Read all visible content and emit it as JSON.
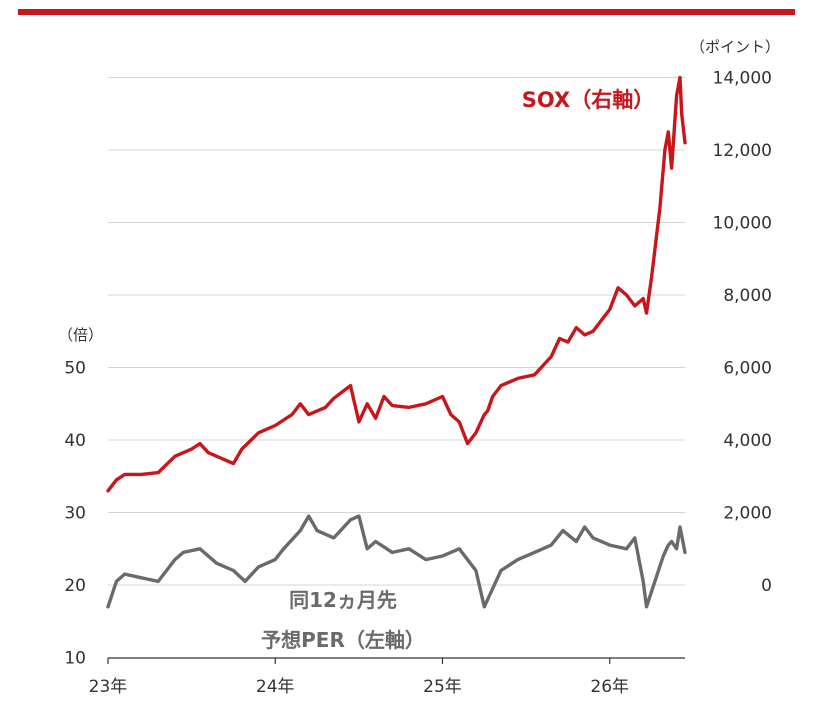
{
  "chart_data": {
    "type": "line",
    "left_axis": {
      "unit": "（倍）",
      "ylim": [
        10,
        50
      ],
      "ticks": [
        "10",
        "20",
        "30",
        "40",
        "50"
      ]
    },
    "right_axis": {
      "unit": "（ポイント）",
      "ylim": [
        0,
        14000
      ],
      "ticks": [
        "0",
        "2,000",
        "4,000",
        "6,000",
        "8,000",
        "10,000",
        "12,000",
        "14,000"
      ]
    },
    "x_axis": {
      "ticks": [
        "23年",
        "24年",
        "25年",
        "26年"
      ],
      "xlim": [
        2023.0,
        2026.45
      ]
    },
    "grid": true,
    "series": [
      {
        "name": "SOX（右軸）",
        "axis": "right",
        "color": "#c8161d",
        "x": [
          2023.0,
          2023.05,
          2023.1,
          2023.2,
          2023.3,
          2023.4,
          2023.5,
          2023.55,
          2023.6,
          2023.7,
          2023.75,
          2023.8,
          2023.9,
          2024.0,
          2024.1,
          2024.15,
          2024.2,
          2024.3,
          2024.35,
          2024.45,
          2024.5,
          2024.55,
          2024.6,
          2024.65,
          2024.7,
          2024.8,
          2024.9,
          2025.0,
          2025.05,
          2025.1,
          2025.15,
          2025.2,
          2025.25,
          2025.27,
          2025.3,
          2025.35,
          2025.45,
          2025.55,
          2025.65,
          2025.7,
          2025.75,
          2025.8,
          2025.85,
          2025.9,
          2026.0,
          2026.05,
          2026.1,
          2026.15,
          2026.2,
          2026.22,
          2026.25,
          2026.3,
          2026.33,
          2026.35,
          2026.37,
          2026.4,
          2026.42,
          2026.43,
          2026.45
        ],
        "values": [
          2600,
          2900,
          3050,
          3050,
          3100,
          3550,
          3750,
          3900,
          3650,
          3450,
          3350,
          3750,
          4200,
          4400,
          4700,
          5000,
          4700,
          4900,
          5150,
          5500,
          4500,
          5000,
          4600,
          5200,
          4950,
          4900,
          5000,
          5200,
          4700,
          4500,
          3900,
          4200,
          4700,
          4800,
          5200,
          5500,
          5700,
          5800,
          6300,
          6800,
          6700,
          7100,
          6900,
          7000,
          7600,
          8200,
          8000,
          7700,
          7900,
          7500,
          8500,
          10400,
          12000,
          12500,
          11500,
          13500,
          14000,
          13000,
          12200
        ]
      },
      {
        "name": "同12ヵ月先予想PER（左軸）",
        "axis": "left",
        "color": "#6a6a6a",
        "x": [
          2023.0,
          2023.05,
          2023.1,
          2023.2,
          2023.3,
          2023.4,
          2023.45,
          2023.55,
          2023.65,
          2023.75,
          2023.82,
          2023.9,
          2024.0,
          2024.05,
          2024.15,
          2024.2,
          2024.25,
          2024.35,
          2024.45,
          2024.5,
          2024.55,
          2024.6,
          2024.7,
          2024.8,
          2024.9,
          2025.0,
          2025.1,
          2025.2,
          2025.25,
          2025.3,
          2025.35,
          2025.45,
          2025.55,
          2025.65,
          2025.72,
          2025.8,
          2025.85,
          2025.9,
          2026.0,
          2026.1,
          2026.15,
          2026.2,
          2026.22,
          2026.27,
          2026.32,
          2026.35,
          2026.37,
          2026.4,
          2026.42,
          2026.45
        ],
        "values": [
          17,
          20.5,
          21.5,
          21,
          20.5,
          23.5,
          24.5,
          25,
          23,
          22,
          20.5,
          22.5,
          23.5,
          25,
          27.5,
          29.5,
          27.5,
          26.5,
          29,
          29.5,
          25,
          26,
          24.5,
          25,
          23.5,
          24,
          25,
          22,
          17,
          19.5,
          22,
          23.5,
          24.5,
          25.5,
          27.5,
          26,
          28,
          26.5,
          25.5,
          25,
          26.5,
          20.5,
          17,
          20.5,
          24,
          25.5,
          26,
          25,
          28,
          24.5
        ]
      }
    ],
    "annotations": [
      "SOX（右軸）",
      "同12ヵ月先",
      "予想PER（左軸）"
    ]
  }
}
